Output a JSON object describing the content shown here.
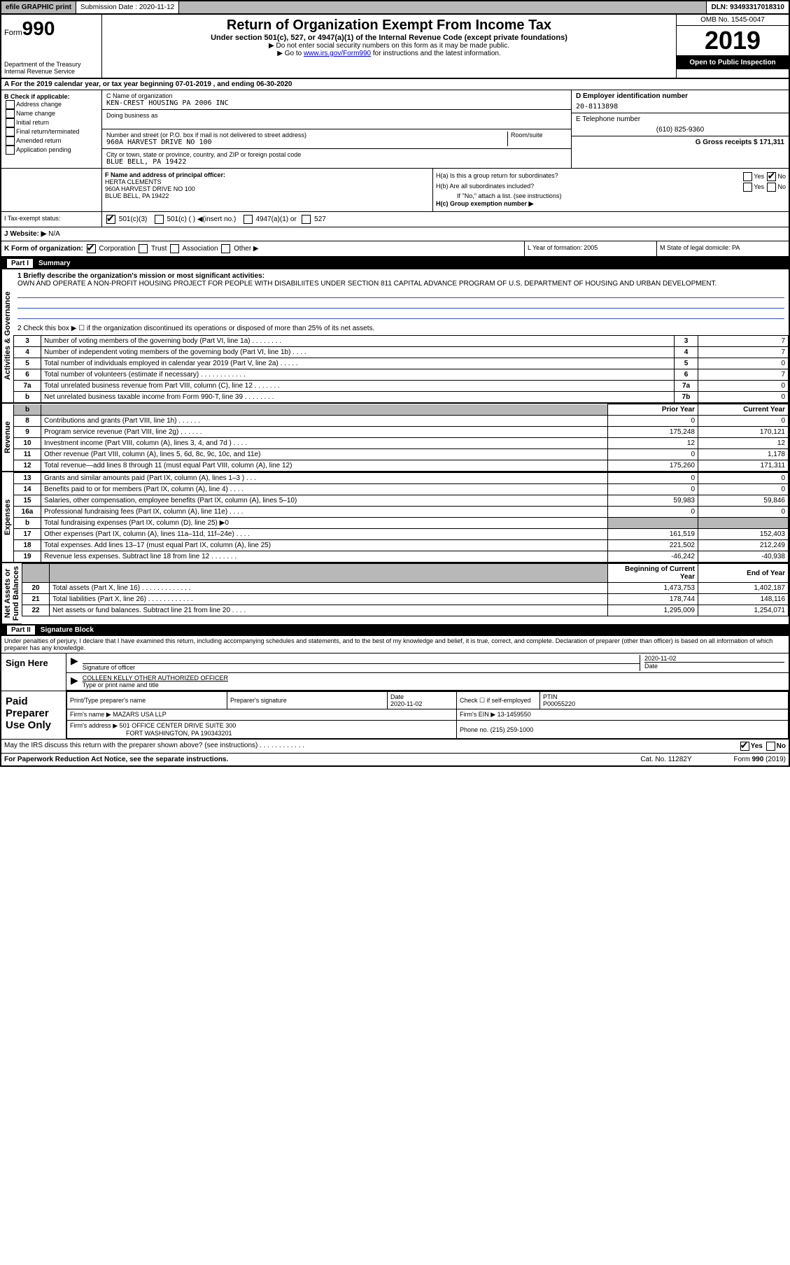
{
  "topbar": {
    "efile": "efile GRAPHIC print",
    "subdate_label": "Submission Date : 2020-11-12",
    "dln": "DLN: 93493317018310"
  },
  "header": {
    "form_pre": "Form",
    "form_num": "990",
    "title": "Return of Organization Exempt From Income Tax",
    "subtitle": "Under section 501(c), 527, or 4947(a)(1) of the Internal Revenue Code (except private foundations)",
    "instr1": "▶ Do not enter social security numbers on this form as it may be made public.",
    "instr2_pre": "▶ Go to ",
    "instr2_link": "www.irs.gov/Form990",
    "instr2_post": " for instructions and the latest information.",
    "omb": "OMB No. 1545-0047",
    "year": "2019",
    "open": "Open to Public Inspection",
    "dept": "Department of the Treasury\nInternal Revenue Service"
  },
  "section_a": {
    "cal_year": "A For the 2019 calendar year, or tax year beginning 07-01-2019   , and ending 06-30-2020",
    "b_label": "B Check if applicable:",
    "b_opts": [
      "Address change",
      "Name change",
      "Initial return",
      "Final return/terminated",
      "Amended return",
      "Application pending"
    ],
    "c_name_label": "C Name of organization",
    "c_name": "KEN-CREST HOUSING PA 2006 INC",
    "dba_label": "Doing business as",
    "addr_label": "Number and street (or P.O. box if mail is not delivered to street address)",
    "room_label": "Room/suite",
    "addr": "960A HARVEST DRIVE NO 100",
    "city_label": "City or town, state or province, country, and ZIP or foreign postal code",
    "city": "BLUE BELL, PA  19422",
    "d_label": "D Employer identification number",
    "d_val": "20-8113898",
    "e_label": "E Telephone number",
    "e_val": "(610) 825-9360",
    "g_label": "G Gross receipts $ 171,311"
  },
  "section_f": {
    "f_label": "F  Name and address of principal officer:",
    "f_name": "HERTA CLEMENTS",
    "f_addr1": "960A HARVEST DRIVE NO 100",
    "f_addr2": "BLUE BELL, PA  19422",
    "ha_label": "H(a)  Is this a group return for subordinates?",
    "ha_yes": "Yes",
    "ha_no": "No",
    "hb_label": "H(b)  Are all subordinates included?",
    "hb_instr": "If \"No,\" attach a list. (see instructions)",
    "hc_label": "H(c)  Group exemption number ▶"
  },
  "status": {
    "i_label": "I  Tax-exempt status:",
    "opt1": "501(c)(3)",
    "opt2": "501(c) (  ) ◀(insert no.)",
    "opt3": "4947(a)(1) or",
    "opt4": "527",
    "j_label": "J  Website: ▶",
    "j_val": "N/A"
  },
  "org_type": {
    "k_label": "K Form of organization:",
    "k_opts": [
      "Corporation",
      "Trust",
      "Association",
      "Other ▶"
    ],
    "l_label": "L Year of formation: 2005",
    "m_label": "M State of legal domicile: PA"
  },
  "part1": {
    "title": "Part I",
    "subtitle": "Summary",
    "side_activities": "Activities & Governance",
    "side_revenue": "Revenue",
    "side_expenses": "Expenses",
    "side_netassets": "Net Assets or\nFund Balances",
    "line1_label": "1  Briefly describe the organization's mission or most significant activities:",
    "line1_text": "OWN AND OPERATE A NON-PROFIT HOUSING PROJECT FOR PEOPLE WITH DISABILIITES UNDER SECTION 811 CAPITAL ADVANCE PROGRAM OF U.S. DEPARTMENT OF HOUSING AND URBAN DEVELOPMENT.",
    "line2": "2   Check this box ▶ ☐  if the organization discontinued its operations or disposed of more than 25% of its net assets.",
    "rows_ag": [
      {
        "n": "3",
        "d": "Number of voting members of the governing body (Part VI, line 1a)  .   .   .   .   .   .   .   .",
        "b": "3",
        "v": "7"
      },
      {
        "n": "4",
        "d": "Number of independent voting members of the governing body (Part VI, line 1b)  .   .   .   .",
        "b": "4",
        "v": "7"
      },
      {
        "n": "5",
        "d": "Total number of individuals employed in calendar year 2019 (Part V, line 2a)  .   .   .   .   .",
        "b": "5",
        "v": "0"
      },
      {
        "n": "6",
        "d": "Total number of volunteers (estimate if necessary)   .   .   .   .   .   .   .   .   .   .   .   .",
        "b": "6",
        "v": "7"
      },
      {
        "n": "7a",
        "d": "Total unrelated business revenue from Part VIII, column (C), line 12   .   .   .   .   .   .   .",
        "b": "7a",
        "v": "0"
      },
      {
        "n": "b",
        "d": "Net unrelated business taxable income from Form 990-T, line 39   .   .   .   .   .   .   .   .",
        "b": "7b",
        "v": "0"
      }
    ],
    "col_prior": "Prior Year",
    "col_current": "Current Year",
    "rows_rev": [
      {
        "n": "8",
        "d": "Contributions and grants (Part VIII, line 1h)   .   .   .   .   .   .",
        "p": "0",
        "c": "0"
      },
      {
        "n": "9",
        "d": "Program service revenue (Part VIII, line 2g)   .   .   .   .   .   .",
        "p": "175,248",
        "c": "170,121"
      },
      {
        "n": "10",
        "d": "Investment income (Part VIII, column (A), lines 3, 4, and 7d )   .   .   .   .",
        "p": "12",
        "c": "12"
      },
      {
        "n": "11",
        "d": "Other revenue (Part VIII, column (A), lines 5, 6d, 8c, 9c, 10c, and 11e)",
        "p": "0",
        "c": "1,178"
      },
      {
        "n": "12",
        "d": "Total revenue—add lines 8 through 11 (must equal Part VIII, column (A), line 12)",
        "p": "175,260",
        "c": "171,311"
      }
    ],
    "rows_exp": [
      {
        "n": "13",
        "d": "Grants and similar amounts paid (Part IX, column (A), lines 1–3 )  .   .   .",
        "p": "0",
        "c": "0"
      },
      {
        "n": "14",
        "d": "Benefits paid to or for members (Part IX, column (A), line 4)   .   .   .   .",
        "p": "0",
        "c": "0"
      },
      {
        "n": "15",
        "d": "Salaries, other compensation, employee benefits (Part IX, column (A), lines 5–10)",
        "p": "59,983",
        "c": "59,846"
      },
      {
        "n": "16a",
        "d": "Professional fundraising fees (Part IX, column (A), line 11e)   .   .   .   .",
        "p": "0",
        "c": "0"
      },
      {
        "n": "b",
        "d": "Total fundraising expenses (Part IX, column (D), line 25) ▶0",
        "p": "",
        "c": "",
        "shade": true
      },
      {
        "n": "17",
        "d": "Other expenses (Part IX, column (A), lines 11a–11d, 11f–24e)   .   .   .   .",
        "p": "161,519",
        "c": "152,403"
      },
      {
        "n": "18",
        "d": "Total expenses. Add lines 13–17 (must equal Part IX, column (A), line 25)",
        "p": "221,502",
        "c": "212,249"
      },
      {
        "n": "19",
        "d": "Revenue less expenses. Subtract line 18 from line 12 .   .   .   .   .   .   .",
        "p": "-46,242",
        "c": "-40,938"
      }
    ],
    "col_begin": "Beginning of Current Year",
    "col_end": "End of Year",
    "rows_net": [
      {
        "n": "20",
        "d": "Total assets (Part X, line 16)  .   .   .   .   .   .   .   .   .   .   .   .   .",
        "p": "1,473,753",
        "c": "1,402,187"
      },
      {
        "n": "21",
        "d": "Total liabilities (Part X, line 26)  .   .   .   .   .   .   .   .   .   .   .   .",
        "p": "178,744",
        "c": "148,116"
      },
      {
        "n": "22",
        "d": "Net assets or fund balances. Subtract line 21 from line 20   .   .   .   .",
        "p": "1,295,009",
        "c": "1,254,071"
      }
    ]
  },
  "part2": {
    "title": "Part II",
    "subtitle": "Signature Block",
    "decl": "Under penalties of perjury, I declare that I have examined this return, including accompanying schedules and statements, and to the best of my knowledge and belief, it is true, correct, and complete. Declaration of preparer (other than officer) is based on all information of which preparer has any knowledge.",
    "sign_here": "Sign Here",
    "sig_officer": "Signature of officer",
    "sig_date": "2020-11-02",
    "sig_date_label": "Date",
    "officer_name": "COLLEEN KELLY OTHER AUTHORIZED OFFICER",
    "type_label": "Type or print name and title",
    "paid_prep": "Paid Preparer Use Only",
    "prep_name_label": "Print/Type preparer's name",
    "prep_sig_label": "Preparer's signature",
    "prep_date_label": "Date",
    "prep_date": "2020-11-02",
    "prep_check": "Check ☐ if self-employed",
    "ptin_label": "PTIN",
    "ptin": "P00055220",
    "firm_name_label": "Firm's name    ▶",
    "firm_name": "MAZARS USA LLP",
    "firm_ein_label": "Firm's EIN ▶",
    "firm_ein": "13-1459550",
    "firm_addr_label": "Firm's address ▶",
    "firm_addr1": "501 OFFICE CENTER DRIVE SUITE 300",
    "firm_addr2": "FORT WASHINGTON, PA  190343201",
    "phone_label": "Phone no.",
    "phone": "(215) 259-1000",
    "discuss": "May the IRS discuss this return with the preparer shown above? (see instructions)   .   .   .   .   .   .   .   .   .   .   .   .",
    "discuss_yes": "Yes",
    "discuss_no": "No"
  },
  "footer": {
    "paperwork": "For Paperwork Reduction Act Notice, see the separate instructions.",
    "cat": "Cat. No. 11282Y",
    "form": "Form 990 (2019)"
  },
  "colors": {
    "black": "#000000",
    "gray": "#b8b8b8",
    "link": "#0000cc",
    "rule": "#3050c0"
  }
}
